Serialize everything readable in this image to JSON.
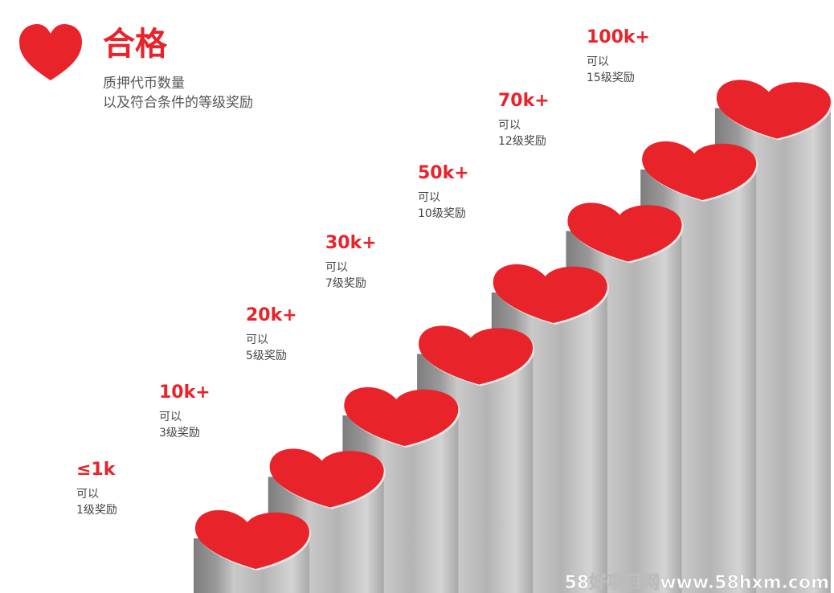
{
  "header": {
    "title": "合格",
    "subtitle": [
      "质押代币数量",
      "以及符合条件的等级奖励"
    ]
  },
  "tiers": [
    {
      "amount": "≤1k",
      "line1": "可以",
      "line2": "1级奖励"
    },
    {
      "amount": "10k+",
      "line1": "可以",
      "line2": "3级奖励"
    },
    {
      "amount": "20k+",
      "line1": "可以",
      "line2": "5级奖励"
    },
    {
      "amount": "30k+",
      "line1": "可以",
      "line2": "7级奖励"
    },
    {
      "amount": "50k+",
      "line1": "可以",
      "line2": "10级奖励"
    },
    {
      "amount": "70k+",
      "line1": "可以",
      "line2": "12级奖励"
    },
    {
      "amount": "100k+",
      "line1": "可以",
      "line2": "15级奖励"
    }
  ],
  "watermark": "58好项目网www.58hxm.com"
}
